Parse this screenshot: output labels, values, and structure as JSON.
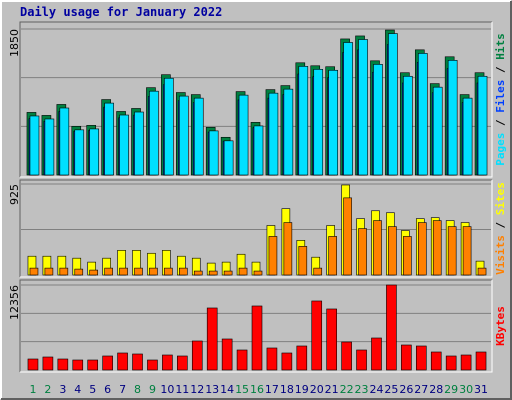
{
  "title": "Daily usage for January 2022",
  "legend_separator": " / ",
  "chart_data": [
    {
      "type": "bar3",
      "ylim": [
        0,
        1850
      ],
      "yticks": [
        1850
      ],
      "grid_divisions": 3,
      "series": [
        {
          "name": "Hits",
          "color": "#008040",
          "values": [
            793,
            755,
            894,
            617,
            629,
            956,
            805,
            843,
            1107,
            1271,
            1045,
            1019,
            604,
            478,
            1057,
            667,
            1082,
            1133,
            1422,
            1384,
            1372,
            1724,
            1762,
            1447,
            1837,
            1296,
            1586,
            1158,
            1498,
            1019,
            1296
          ]
        },
        {
          "name": "Files",
          "color": "#0040ff",
          "values": [
            714,
            680,
            805,
            555,
            566,
            860,
            725,
            759,
            996,
            1144,
            941,
            917,
            544,
            430,
            951,
            600,
            974,
            1020,
            1280,
            1246,
            1235,
            1552,
            1586,
            1302,
            1653,
            1166,
            1427,
            1042,
            1348,
            917,
            1166
          ]
        },
        {
          "name": "Pages",
          "color": "#00e0ff",
          "values": [
            748,
            710,
            849,
            572,
            584,
            911,
            760,
            798,
            1062,
            1226,
            1000,
            974,
            559,
            433,
            1012,
            622,
            1037,
            1088,
            1377,
            1339,
            1327,
            1679,
            1717,
            1402,
            1792,
            1251,
            1541,
            1113,
            1453,
            974,
            1251
          ]
        }
      ]
    },
    {
      "type": "bar2",
      "ylim": [
        0,
        925
      ],
      "yticks": [
        925
      ],
      "grid_divisions": 2,
      "series": [
        {
          "name": "Sites",
          "color": "#ffff00",
          "values": [
            191,
            191,
            191,
            171,
            131,
            171,
            251,
            251,
            221,
            251,
            191,
            171,
            121,
            131,
            211,
            131,
            503,
            674,
            352,
            181,
            503,
            915,
            573,
            653,
            633,
            452,
            573,
            583,
            553,
            533,
            141
          ]
        },
        {
          "name": "Visits",
          "color": "#ff8000",
          "values": [
            70,
            70,
            70,
            60,
            50,
            70,
            70,
            70,
            70,
            70,
            70,
            40,
            40,
            40,
            70,
            40,
            392,
            533,
            291,
            70,
            392,
            784,
            472,
            553,
            492,
            392,
            533,
            553,
            492,
            492,
            70
          ]
        }
      ]
    },
    {
      "type": "bar1",
      "ylim": [
        0,
        12356
      ],
      "yticks": [
        12356
      ],
      "grid_divisions": 3,
      "categories": [
        "1",
        "2",
        "3",
        "4",
        "5",
        "6",
        "7",
        "8",
        "9",
        "10",
        "11",
        "12",
        "13",
        "14",
        "15",
        "16",
        "17",
        "18",
        "19",
        "20",
        "21",
        "22",
        "23",
        "24",
        "25",
        "26",
        "27",
        "28",
        "29",
        "30",
        "31"
      ],
      "category_colors": [
        "#008040",
        "#008040",
        "#000080",
        "#000080",
        "#000080",
        "#000080",
        "#000080",
        "#008040",
        "#008040",
        "#000080",
        "#000080",
        "#000080",
        "#000080",
        "#000080",
        "#008040",
        "#008040",
        "#000080",
        "#000080",
        "#000080",
        "#000080",
        "#000080",
        "#008040",
        "#008040",
        "#000080",
        "#000080",
        "#000080",
        "#000080",
        "#000080",
        "#008040",
        "#008040",
        "#000080"
      ],
      "series": [
        {
          "name": "KBytes",
          "color": "#ff0000",
          "values": [
            1599,
            1890,
            1599,
            1454,
            1454,
            2036,
            2472,
            2327,
            1454,
            2181,
            2036,
            4217,
            9015,
            4508,
            2908,
            9306,
            3199,
            2472,
            3490,
            10033,
            8870,
            4071,
            2908,
            4653,
            12356,
            3635,
            3490,
            2618,
            2036,
            2181,
            2618
          ]
        }
      ]
    }
  ]
}
